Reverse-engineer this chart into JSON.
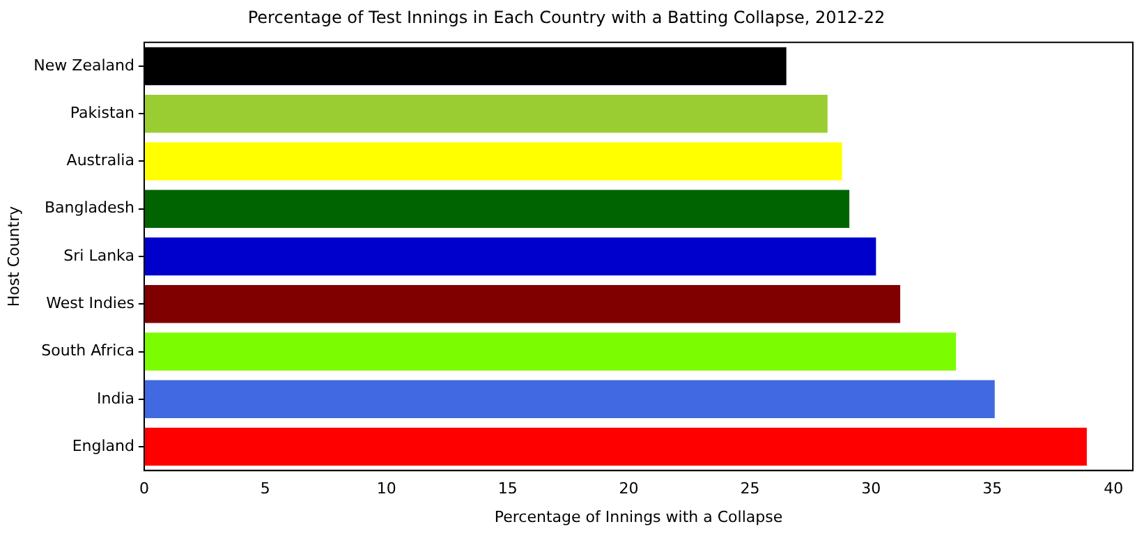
{
  "chart_data": {
    "type": "bar",
    "orientation": "horizontal",
    "title": "Percentage of Test Innings in Each Country with a Batting Collapse, 2012-22",
    "xlabel": "Percentage of Innings with a Collapse",
    "ylabel": "Host Country",
    "categories": [
      "New Zealand",
      "Pakistan",
      "Australia",
      "Bangladesh",
      "Sri Lanka",
      "West Indies",
      "South Africa",
      "India",
      "England"
    ],
    "values": [
      26.5,
      28.2,
      28.8,
      29.1,
      30.2,
      31.2,
      33.5,
      35.1,
      38.9
    ],
    "colors": [
      "#000000",
      "#9acd32",
      "#ffff00",
      "#006400",
      "#0000cd",
      "#800000",
      "#7cfc00",
      "#4169e1",
      "#ff0000"
    ],
    "xlim": [
      0,
      40.8
    ],
    "xticks": [
      0,
      5,
      10,
      15,
      20,
      25,
      30,
      35,
      40
    ],
    "grid": false,
    "legend": false
  }
}
